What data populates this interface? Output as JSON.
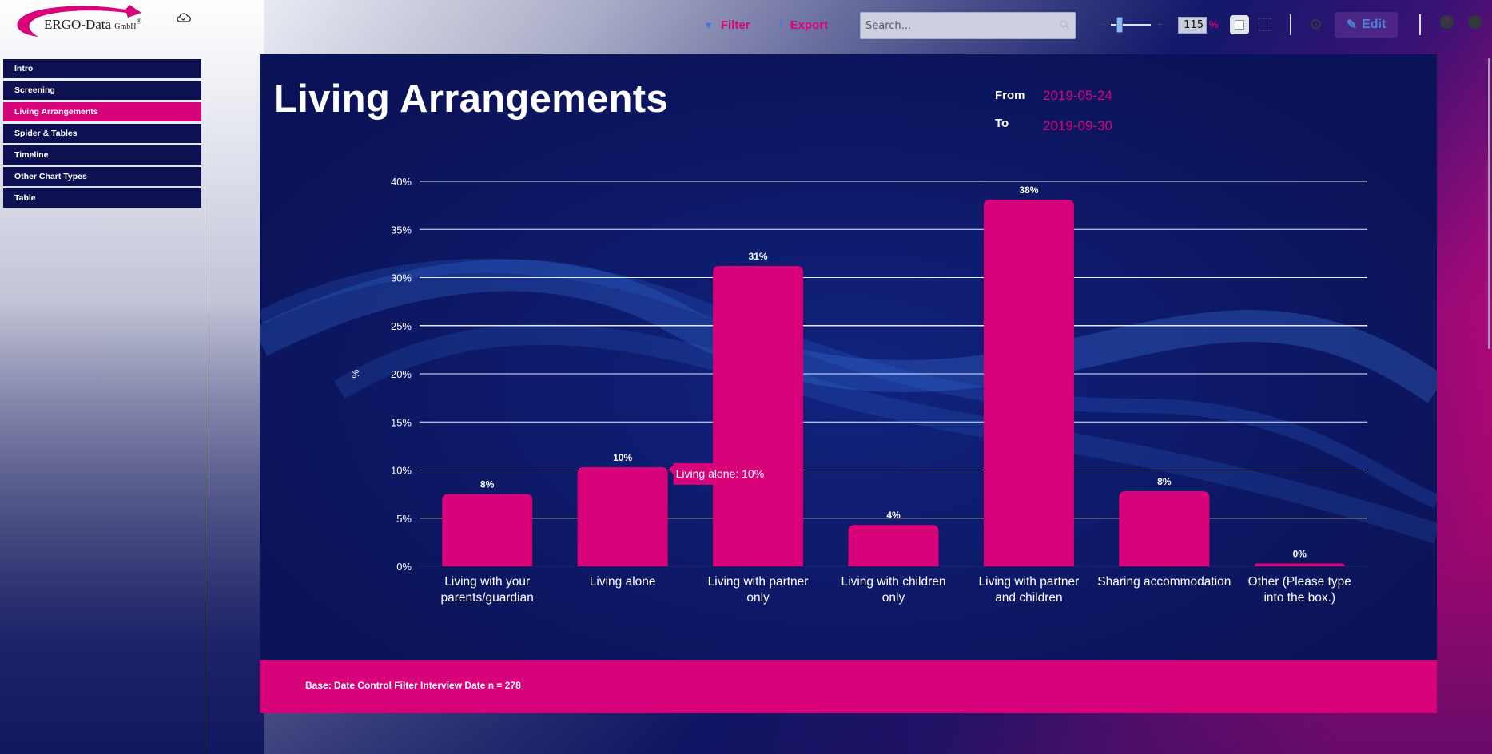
{
  "header": {
    "logo_text": "ERGO-Data",
    "logo_suffix": "GmbH",
    "logo_mark": "®",
    "filter_label": "Filter",
    "export_label": "Export",
    "search_placeholder": "Search...",
    "zoom_value": "115",
    "zoom_unit": "%",
    "edit_label": "Edit",
    "help_glyph": "?",
    "icons": {
      "cloud": "cloud-check-icon",
      "filter": "filter-icon",
      "export": "download-icon",
      "search": "search-icon",
      "fit": "fit-page-icon",
      "fullscreen": "fullscreen-icon",
      "settings": "gear-icon",
      "edit": "pencil-icon",
      "help": "help-icon",
      "user": "user-icon"
    }
  },
  "sidebar": {
    "items": [
      {
        "label": "Intro",
        "active": false
      },
      {
        "label": "Screening",
        "active": false
      },
      {
        "label": "Living Arrangements",
        "active": true
      },
      {
        "label": "Spider & Tables",
        "active": false
      },
      {
        "label": "Timeline",
        "active": false
      },
      {
        "label": "Other Chart Types",
        "active": false
      },
      {
        "label": "Table",
        "active": false
      }
    ]
  },
  "page": {
    "title": "Living Arrangements",
    "from_label": "From",
    "from_value": "2019-05-24",
    "to_label": "To",
    "to_value": "2019-09-30",
    "base_note": "Base: Date Control Filter Interview Date n = 278"
  },
  "colors": {
    "accent": "#d8037a",
    "panel": "#0d1560",
    "nav": "#0d1152",
    "link_blue": "#3d7bd6"
  },
  "chart_data": {
    "type": "bar",
    "title": "Living Arrangements",
    "xlabel": "",
    "ylabel": "%",
    "ylim": [
      0,
      40
    ],
    "yticks": [
      0,
      5,
      10,
      15,
      20,
      25,
      30,
      35,
      40
    ],
    "ytick_labels": [
      "0%",
      "5%",
      "10%",
      "15%",
      "20%",
      "25%",
      "30%",
      "35%",
      "40%"
    ],
    "grid": true,
    "categories": [
      [
        "Living with your",
        "parents/guardian"
      ],
      [
        "Living alone"
      ],
      [
        "Living with partner",
        "only"
      ],
      [
        "Living with children",
        "only"
      ],
      [
        "Living with partner",
        "and children"
      ],
      [
        "Sharing accommodation"
      ],
      [
        "Other (Please type",
        "into the box.)"
      ]
    ],
    "values": [
      7.5,
      10.3,
      31.2,
      4.3,
      38.1,
      7.8,
      0.3
    ],
    "data_labels": [
      "8%",
      "10%",
      "31%",
      "4%",
      "38%",
      "8%",
      "0%"
    ],
    "bar_color": "#d8037a",
    "tooltip": {
      "index": 1,
      "text": "Living alone: 10%"
    }
  }
}
